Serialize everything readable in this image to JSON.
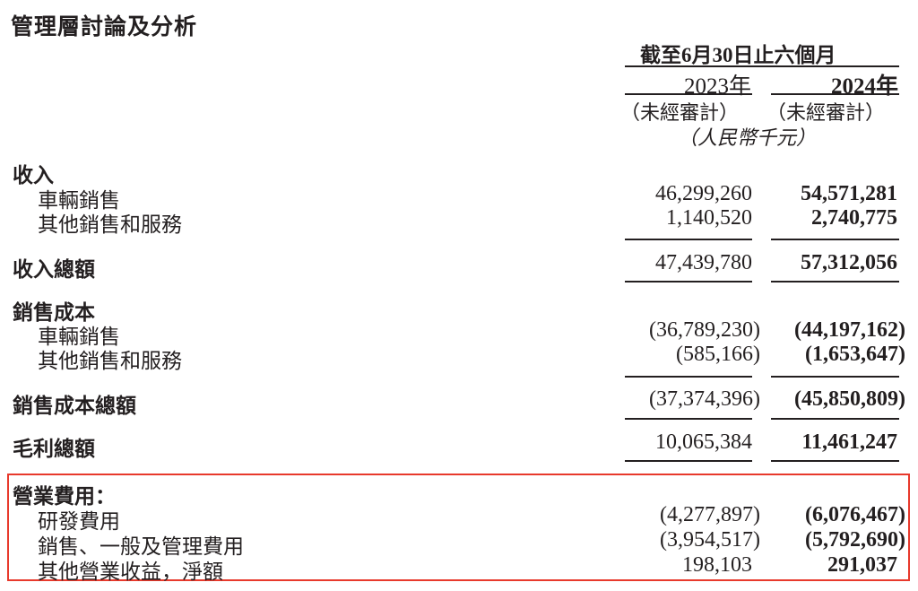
{
  "title": "管理層討論及分析",
  "header": {
    "period": "截至6月30日止六個月",
    "year_2023": "2023年",
    "year_2024": "2024年",
    "unaudited_2023": "（未經審計）",
    "unaudited_2024": "（未經審計）",
    "currency": "（人民幣千元）"
  },
  "rows": [
    {
      "label": "收入",
      "style": "heading"
    },
    {
      "label": "車輛銷售",
      "style": "sub",
      "v2023": "46,299,260",
      "v2024": "54,571,281"
    },
    {
      "label": "其他銷售和服務",
      "style": "sub",
      "v2023": "1,140,520",
      "v2024": "2,740,775"
    },
    {
      "label": "收入總額",
      "style": "heading",
      "v2023": "47,439,780",
      "v2024": "57,312,056"
    },
    {
      "label": "銷售成本",
      "style": "heading"
    },
    {
      "label": "車輛銷售",
      "style": "sub",
      "v2023": "(36,789,230)",
      "v2024": "(44,197,162)"
    },
    {
      "label": "其他銷售和服務",
      "style": "sub",
      "v2023": "(585,166)",
      "v2024": "(1,653,647)"
    },
    {
      "label": "銷售成本總額",
      "style": "heading",
      "v2023": "(37,374,396)",
      "v2024": "(45,850,809)"
    },
    {
      "label": "毛利總額",
      "style": "heading",
      "v2023": "10,065,384",
      "v2024": "11,461,247"
    },
    {
      "label": "營業費用：",
      "style": "heading"
    },
    {
      "label": "研發費用",
      "style": "sub",
      "v2023": "(4,277,897)",
      "v2024": "(6,076,467)"
    },
    {
      "label": "銷售、一般及管理費用",
      "style": "sub",
      "v2023": "(3,954,517)",
      "v2024": "(5,792,690)"
    },
    {
      "label": "其他營業收益，淨額",
      "style": "sub",
      "v2023": "198,103",
      "v2024": "291,037"
    }
  ],
  "highlight_color": "#e8392c"
}
